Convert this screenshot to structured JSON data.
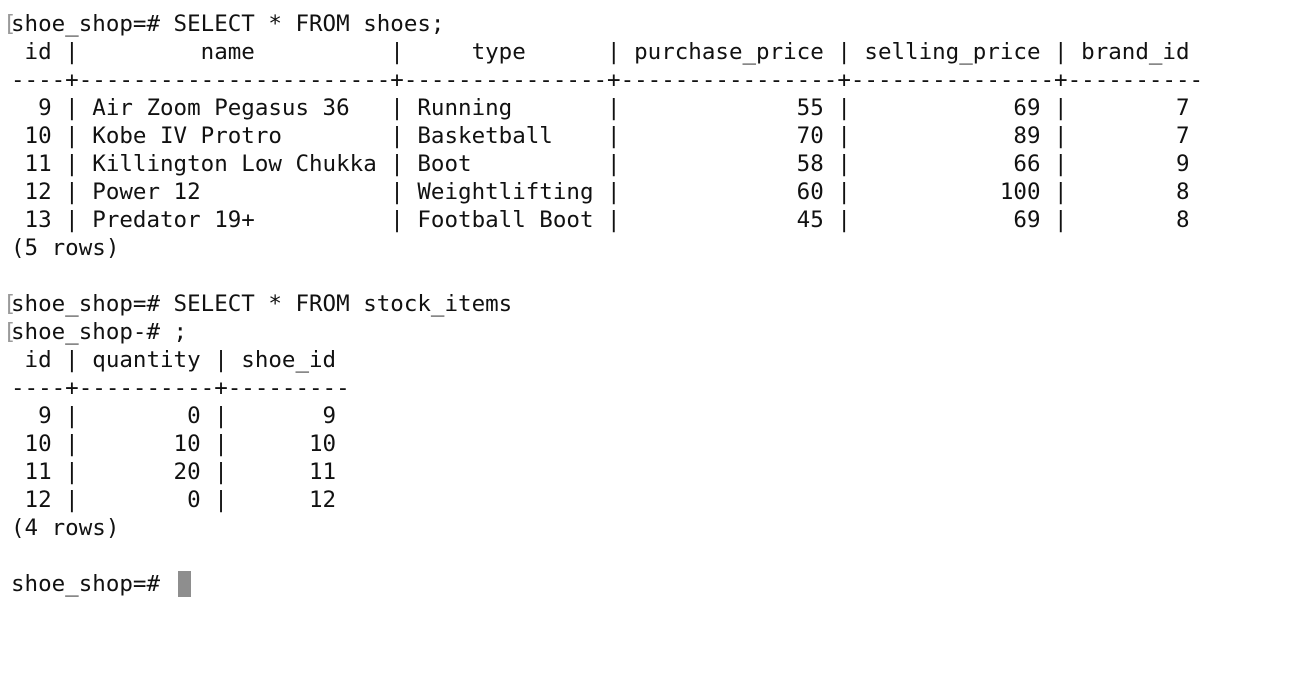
{
  "prompt_marker": "[",
  "lines": [
    "shoe_shop=# SELECT * FROM shoes;",
    " id |         name          |     type      | purchase_price | selling_price | brand_id",
    "----+-----------------------+---------------+----------------+---------------+----------",
    "  9 | Air Zoom Pegasus 36   | Running       |             55 |            69 |        7",
    " 10 | Kobe IV Protro        | Basketball    |             70 |            89 |        7",
    " 11 | Killington Low Chukka | Boot          |             58 |            66 |        9",
    " 12 | Power 12              | Weightlifting |             60 |           100 |        8",
    " 13 | Predator 19+          | Football Boot |             45 |            69 |        8",
    "(5 rows)",
    "",
    "shoe_shop=# SELECT * FROM stock_items",
    "shoe_shop-# ;",
    " id | quantity | shoe_id",
    "----+----------+---------",
    "  9 |        0 |       9",
    " 10 |       10 |      10",
    " 11 |       20 |      11",
    " 12 |        0 |      12",
    "(4 rows)",
    "",
    "shoe_shop=# "
  ]
}
